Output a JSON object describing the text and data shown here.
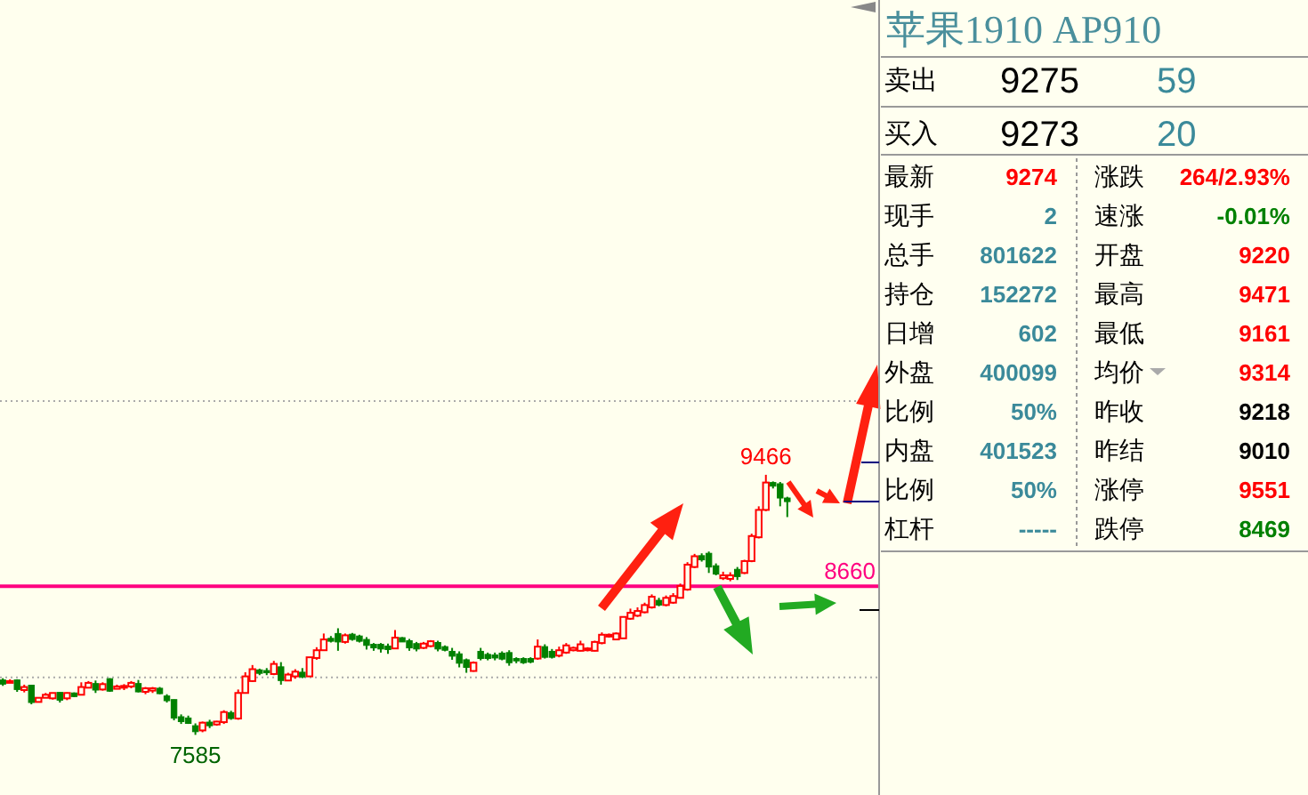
{
  "chart_data": [
    {
      "type": "candlestick",
      "categories": [
        null,
        null,
        null,
        null,
        null,
        null,
        null,
        null,
        null,
        null,
        null,
        null,
        null,
        null,
        null,
        null,
        null,
        null,
        null,
        null,
        null,
        null,
        null,
        null,
        null,
        null,
        null,
        null,
        null,
        null,
        null,
        null,
        null,
        null,
        null,
        null,
        null,
        null,
        null,
        null,
        null,
        null,
        null,
        null,
        null,
        null,
        null,
        null,
        null,
        null,
        null,
        null,
        null,
        null,
        null,
        null,
        null,
        null,
        null,
        null,
        null,
        null,
        null,
        null,
        null,
        null,
        null,
        null,
        null,
        null,
        null,
        null,
        null,
        null,
        null,
        null,
        null,
        null,
        null,
        null,
        null,
        null,
        null,
        null,
        null,
        null,
        null,
        null,
        null,
        null,
        null,
        null,
        null,
        null,
        null,
        null,
        null,
        null,
        null,
        null,
        null,
        null,
        null,
        null,
        null,
        null,
        null,
        null,
        null,
        null,
        null
      ],
      "ohlc": [
        [
          7982,
          7995,
          7939,
          7952
        ],
        [
          7965,
          7987,
          7961,
          7974
        ],
        [
          7982,
          7987,
          7896,
          7913
        ],
        [
          7909,
          7948,
          7892,
          7931
        ],
        [
          7944,
          7944,
          7806,
          7819
        ],
        [
          7823,
          7853,
          7823,
          7853
        ],
        [
          7853,
          7888,
          7853,
          7875
        ],
        [
          7849,
          7888,
          7840,
          7888
        ],
        [
          7892,
          7892,
          7819,
          7836
        ],
        [
          7849,
          7892,
          7836,
          7888
        ],
        [
          7888,
          7892,
          7858,
          7862
        ],
        [
          7875,
          7965,
          7875,
          7931
        ],
        [
          7926,
          7974,
          7922,
          7961
        ],
        [
          7956,
          7978,
          7888,
          7909
        ],
        [
          7913,
          7965,
          7905,
          7952
        ],
        [
          7991,
          7995,
          7896,
          7901
        ],
        [
          7918,
          7948,
          7918,
          7935
        ],
        [
          7926,
          7952,
          7909,
          7939
        ],
        [
          7935,
          7974,
          7922,
          7961
        ],
        [
          7956,
          7982,
          7892,
          7896
        ],
        [
          7896,
          7931,
          7879,
          7922
        ],
        [
          7905,
          7931,
          7888,
          7922
        ],
        [
          7922,
          7931,
          7879,
          7883
        ],
        [
          7866,
          7879,
          7819,
          7832
        ],
        [
          7840,
          7840,
          7690,
          7707
        ],
        [
          7716,
          7733,
          7664,
          7681
        ],
        [
          7707,
          7724,
          7664,
          7668
        ],
        [
          7651,
          7668,
          7585,
          7608
        ],
        [
          7617,
          7681,
          7604,
          7673
        ],
        [
          7677,
          7694,
          7634,
          7651
        ],
        [
          7660,
          7686,
          7651,
          7681
        ],
        [
          7677,
          7763,
          7664,
          7750
        ],
        [
          7746,
          7759,
          7694,
          7703
        ],
        [
          7703,
          7913,
          7694,
          7888
        ],
        [
          7888,
          8038,
          7883,
          8008
        ],
        [
          7974,
          8090,
          7969,
          8060
        ],
        [
          8055,
          8064,
          8017,
          8030
        ],
        [
          8050,
          8068,
          8017,
          8034
        ],
        [
          8025,
          8120,
          8017,
          8098
        ],
        [
          8077,
          8111,
          7948,
          7978
        ],
        [
          7978,
          8034,
          7974,
          8021
        ],
        [
          8008,
          8060,
          7991,
          8042
        ],
        [
          8038,
          8068,
          7995,
          8004
        ],
        [
          8008,
          8146,
          8008,
          8146
        ],
        [
          8141,
          8219,
          8128,
          8197
        ],
        [
          8197,
          8318,
          8197,
          8275
        ],
        [
          8283,
          8300,
          8253,
          8262
        ],
        [
          8318,
          8356,
          8193,
          8257
        ],
        [
          8257,
          8318,
          8245,
          8305
        ],
        [
          8313,
          8322,
          8266,
          8275
        ],
        [
          8300,
          8309,
          8253,
          8262
        ],
        [
          8275,
          8292,
          8202,
          8232
        ],
        [
          8240,
          8249,
          8193,
          8214
        ],
        [
          8240,
          8249,
          8180,
          8206
        ],
        [
          8227,
          8245,
          8171,
          8202
        ],
        [
          8210,
          8343,
          8210,
          8288
        ],
        [
          8288,
          8292,
          8257,
          8257
        ],
        [
          8266,
          8279,
          8193,
          8214
        ],
        [
          8245,
          8257,
          8189,
          8206
        ],
        [
          8214,
          8257,
          8206,
          8245
        ],
        [
          8227,
          8270,
          8219,
          8262
        ],
        [
          8253,
          8266,
          8189,
          8206
        ],
        [
          8223,
          8232,
          8189,
          8197
        ],
        [
          8189,
          8214,
          8128,
          8154
        ],
        [
          8171,
          8189,
          8073,
          8103
        ],
        [
          8128,
          8137,
          8034,
          8073
        ],
        [
          8047,
          8116,
          8042,
          8107
        ],
        [
          8189,
          8214,
          8124,
          8137
        ],
        [
          8167,
          8180,
          8124,
          8137
        ],
        [
          8163,
          8180,
          8124,
          8141
        ],
        [
          8176,
          8189,
          8124,
          8133
        ],
        [
          8180,
          8197,
          8085,
          8107
        ],
        [
          8137,
          8146,
          8103,
          8120
        ],
        [
          8137,
          8146,
          8098,
          8107
        ],
        [
          8137,
          8146,
          8103,
          8111
        ],
        [
          8137,
          8275,
          8128,
          8223
        ],
        [
          8223,
          8240,
          8137,
          8146
        ],
        [
          8189,
          8206,
          8137,
          8146
        ],
        [
          8158,
          8223,
          8146,
          8197
        ],
        [
          8180,
          8249,
          8171,
          8232
        ],
        [
          8197,
          8223,
          8189,
          8214
        ],
        [
          8193,
          8266,
          8189,
          8240
        ],
        [
          8197,
          8219,
          8189,
          8210
        ],
        [
          8193,
          8266,
          8189,
          8257
        ],
        [
          8249,
          8326,
          8240,
          8309
        ],
        [
          8296,
          8318,
          8288,
          8309
        ],
        [
          8275,
          8326,
          8275,
          8318
        ],
        [
          8283,
          8438,
          8283,
          8438
        ],
        [
          8425,
          8498,
          8417,
          8468
        ],
        [
          8447,
          8507,
          8438,
          8481
        ],
        [
          8472,
          8541,
          8464,
          8524
        ],
        [
          8507,
          8601,
          8498,
          8584
        ],
        [
          8558,
          8576,
          8515,
          8524
        ],
        [
          8524,
          8593,
          8515,
          8576
        ],
        [
          8541,
          8610,
          8533,
          8589
        ],
        [
          8576,
          8679,
          8571,
          8662
        ],
        [
          8636,
          8834,
          8627,
          8816
        ],
        [
          8799,
          8894,
          8791,
          8877
        ],
        [
          8881,
          8898,
          8838,
          8851
        ],
        [
          8898,
          8911,
          8756,
          8799
        ],
        [
          8808,
          8825,
          8739,
          8748
        ],
        [
          8718,
          8765,
          8705,
          8739
        ],
        [
          8713,
          8761,
          8696,
          8739
        ],
        [
          8782,
          8799,
          8705,
          8730
        ],
        [
          8756,
          8851,
          8748,
          8842
        ],
        [
          8842,
          9040,
          8834,
          9023
        ],
        [
          9014,
          9238,
          9006,
          9212
        ],
        [
          9212,
          9466,
          9203,
          9410
        ],
        [
          9410,
          9418,
          9367,
          9384
        ],
        [
          9401,
          9414,
          9238,
          9298
        ],
        [
          9298,
          9307,
          9160,
          9272
        ]
      ],
      "ylim": [
        7150,
        12900
      ],
      "yticks": [
        {
          "value": 8000,
          "label": null
        },
        {
          "value": 10000,
          "label": null
        }
      ],
      "grid": "y",
      "ref_lines": [
        {
          "axis": "y",
          "value": 8660,
          "label": "8660",
          "color": "#ff0080"
        }
      ],
      "annotations": [
        {
          "text": "9466",
          "y": 9466
        },
        {
          "text": "7585",
          "y": 7585
        }
      ]
    },
    {
      "type": "other",
      "title": "苹果1910 AP910",
      "annotations": [
        "卖出",
        "9275",
        "59",
        "买入",
        "9273",
        "20",
        "最新",
        "9274",
        "涨跌",
        "264/2.93%",
        "现手",
        "2",
        "速涨",
        "-0.01%",
        "总手",
        "801622",
        "开盘",
        "9220",
        "持仓",
        "152272",
        "最高",
        "9471",
        "日增",
        "602",
        "最低",
        "9161",
        "外盘",
        "400099",
        "均价",
        "9314",
        "比例",
        "50%",
        "昨收",
        "9218",
        "内盘",
        "401523",
        "昨结",
        "9010",
        "比例",
        "50%",
        "涨停",
        "9551",
        "杠杆",
        "-----",
        "跌停",
        "8469"
      ],
      "colors": [
        "#000000",
        "#000000",
        "#3b8a9a",
        "#000000",
        "#000000",
        "#3b8a9a",
        "#000000",
        "#ff0000",
        "#000000",
        "#ff0000",
        "#000000",
        "#3b8a9a",
        "#000000",
        "#008000",
        "#000000",
        "#3b8a9a",
        "#000000",
        "#ff0000",
        "#000000",
        "#3b8a9a",
        "#000000",
        "#ff0000",
        "#000000",
        "#3b8a9a",
        "#000000",
        "#ff0000",
        "#000000",
        "#3b8a9a",
        "#000000",
        "#ff0000",
        "#000000",
        "#3b8a9a",
        "#000000",
        "#000000",
        "#000000",
        "#3b8a9a",
        "#000000",
        "#000000",
        "#000000",
        "#3b8a9a",
        "#000000",
        "#ff0000",
        "#000000",
        "#3b8a9a",
        "#000000",
        "#008000"
      ]
    }
  ]
}
